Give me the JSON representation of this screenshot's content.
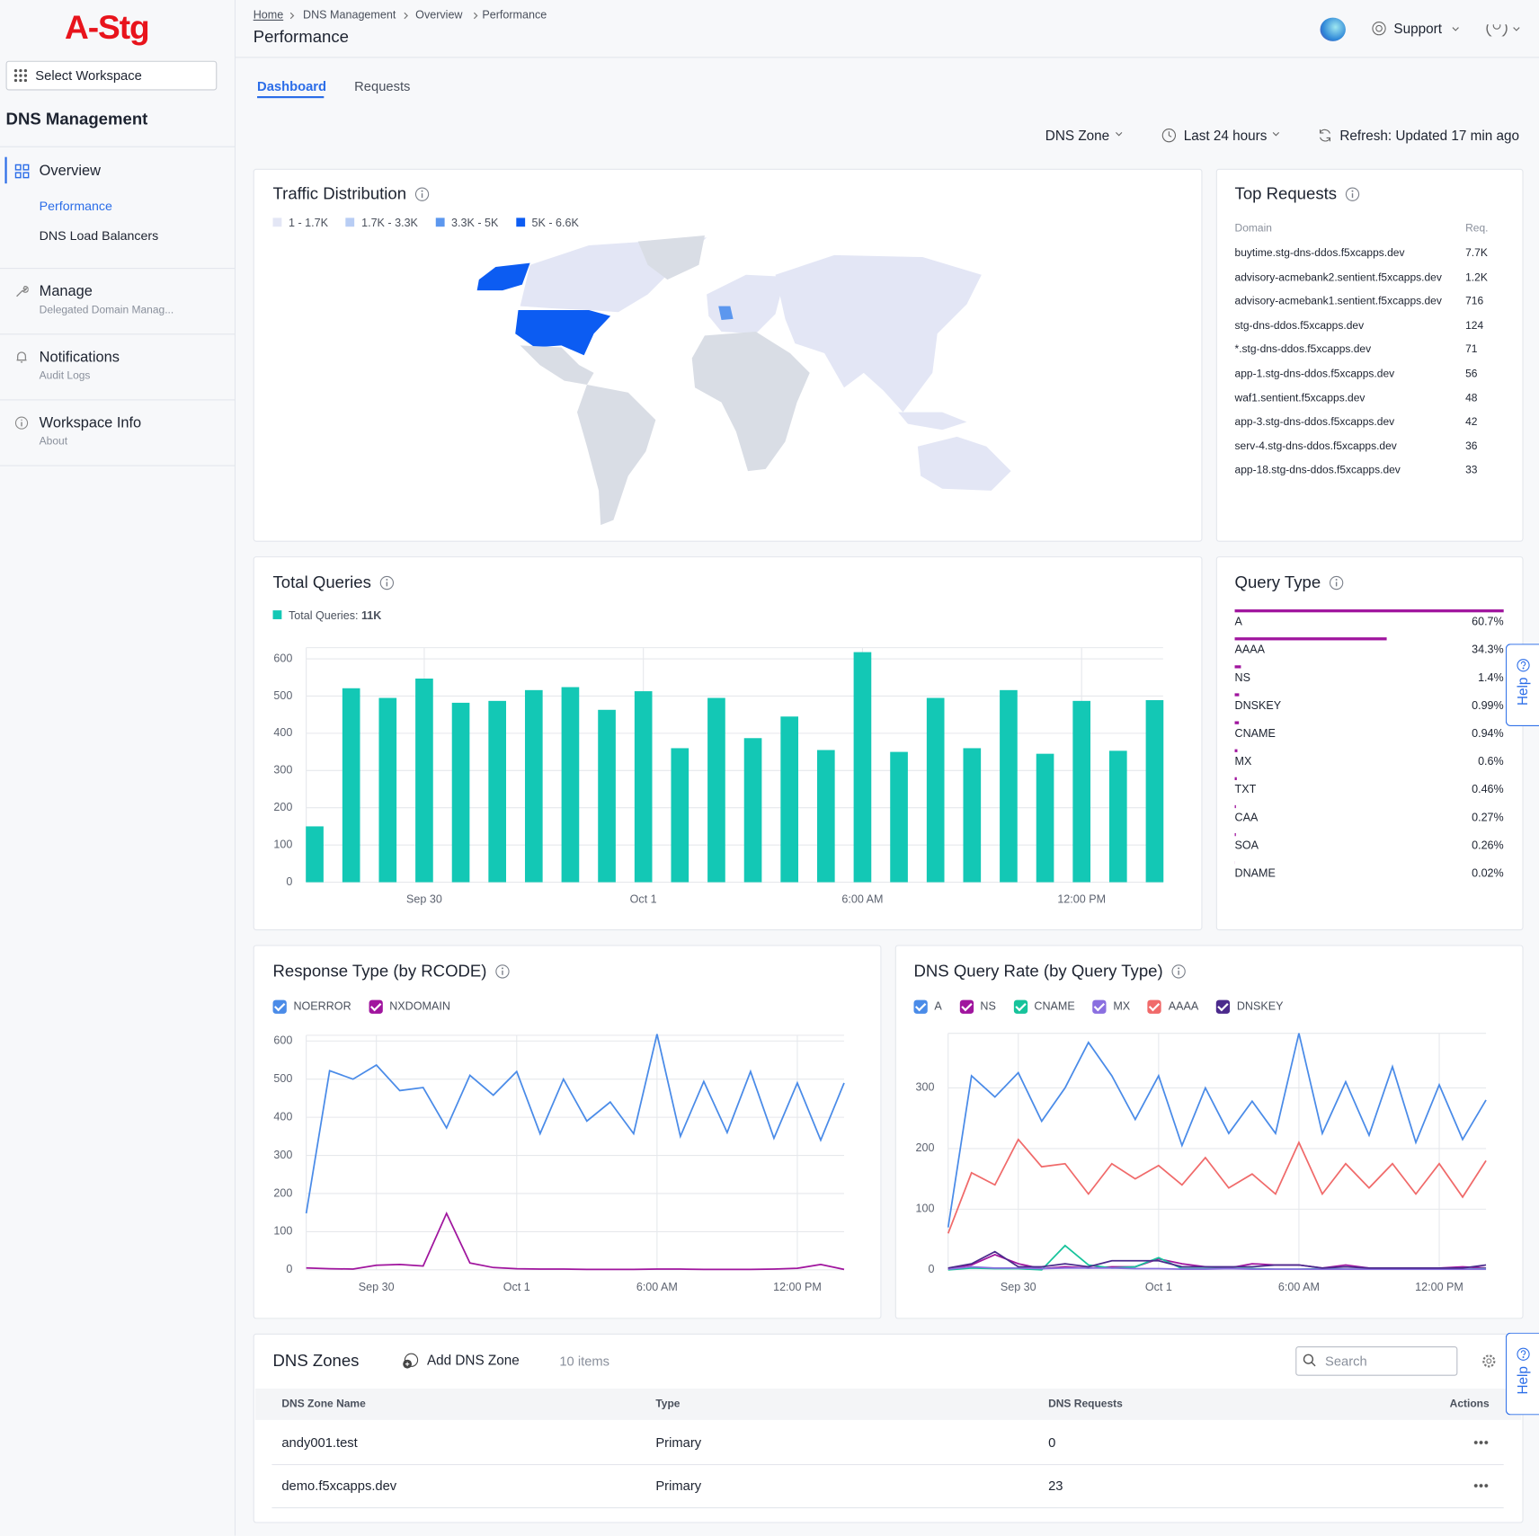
{
  "sidebar": {
    "logo": "A-Stg",
    "workspace": "Select Workspace",
    "section": "DNS Management",
    "nav": [
      {
        "label": "Overview",
        "items": [
          "Performance",
          "DNS Load Balancers"
        ]
      },
      {
        "label": "Manage",
        "sub": "Delegated Domain Manag..."
      },
      {
        "label": "Notifications",
        "sub": "Audit Logs"
      },
      {
        "label": "Workspace Info",
        "sub": "About"
      }
    ]
  },
  "header": {
    "breadcrumb": [
      "Home",
      "DNS Management",
      "Overview",
      "Performance"
    ],
    "title": "Performance",
    "support": "Support"
  },
  "tabs": [
    "Dashboard",
    "Requests"
  ],
  "filters": {
    "zone": "DNS Zone",
    "range": "Last 24 hours",
    "refresh": "Refresh: Updated 17 min ago"
  },
  "traffic_distribution": {
    "title": "Traffic Distribution",
    "legend": [
      {
        "label": "1 - 1.7K",
        "color": "#e3e6f5"
      },
      {
        "label": "1.7K - 3.3K",
        "color": "#b8cdf4"
      },
      {
        "label": "3.3K - 5K",
        "color": "#5c97ee"
      },
      {
        "label": "5K - 6.6K",
        "color": "#0c5cf2"
      }
    ]
  },
  "top_requests": {
    "title": "Top Requests",
    "columns": [
      "Domain",
      "Req."
    ],
    "rows": [
      [
        "buytime.stg-dns-ddos.f5xcapps.dev",
        "7.7K"
      ],
      [
        "advisory-acmebank2.sentient.f5xcapps.dev",
        "1.2K"
      ],
      [
        "advisory-acmebank1.sentient.f5xcapps.dev",
        "716"
      ],
      [
        "stg-dns-ddos.f5xcapps.dev",
        "124"
      ],
      [
        "*.stg-dns-ddos.f5xcapps.dev",
        "71"
      ],
      [
        "app-1.stg-dns-ddos.f5xcapps.dev",
        "56"
      ],
      [
        "waf1.sentient.f5xcapps.dev",
        "48"
      ],
      [
        "app-3.stg-dns-ddos.f5xcapps.dev",
        "42"
      ],
      [
        "serv-4.stg-dns-ddos.f5xcapps.dev",
        "36"
      ],
      [
        "app-18.stg-dns-ddos.f5xcapps.dev",
        "33"
      ]
    ]
  },
  "chart_data": [
    {
      "type": "bar",
      "title": "Total Queries",
      "legend_total": "11K",
      "categories": [
        null,
        null,
        null,
        "Sep 30",
        null,
        null,
        null,
        null,
        null,
        "Oct 1",
        null,
        null,
        null,
        null,
        null,
        "6:00 AM",
        null,
        null,
        null,
        null,
        null,
        "12:00 PM",
        null,
        null
      ],
      "series": [
        {
          "name": "Total Queries",
          "color": "#13c8b5",
          "values": [
            150,
            521,
            495,
            547,
            482,
            487,
            516,
            524,
            463,
            513,
            360,
            495,
            387,
            445,
            355,
            618,
            350,
            495,
            360,
            516,
            345,
            487,
            353,
            489
          ]
        }
      ],
      "ylim": [
        0,
        630
      ],
      "yticks": [
        0,
        100,
        200,
        300,
        400,
        500,
        600
      ],
      "grid": true
    },
    {
      "type": "hbar",
      "title": "Query Type",
      "categories": [
        "A",
        "AAAA",
        "NS",
        "DNSKEY",
        "CNAME",
        "MX",
        "TXT",
        "CAA",
        "SOA",
        "DNAME"
      ],
      "values": [
        60.7,
        34.3,
        1.4,
        0.99,
        0.94,
        0.6,
        0.46,
        0.27,
        0.26,
        0.02
      ],
      "value_labels": [
        "60.7%",
        "34.3%",
        "1.4%",
        "0.99%",
        "0.94%",
        "0.6%",
        "0.46%",
        "0.27%",
        "0.26%",
        "0.02%"
      ],
      "color": "#a0159e"
    },
    {
      "type": "line",
      "title": "Response Type (by RCODE)",
      "categories": [
        null,
        null,
        null,
        "Sep 30",
        null,
        null,
        null,
        null,
        null,
        "Oct 1",
        null,
        null,
        null,
        null,
        null,
        "6:00 AM",
        null,
        null,
        null,
        null,
        null,
        "12:00 PM",
        null,
        null
      ],
      "series": [
        {
          "name": "NOERROR",
          "color": "#4a8be8",
          "values": [
            148,
            522,
            500,
            537,
            470,
            478,
            372,
            510,
            458,
            520,
            357,
            500,
            390,
            440,
            357,
            618,
            350,
            494,
            360,
            520,
            345,
            490,
            340,
            490
          ]
        },
        {
          "name": "NXDOMAIN",
          "color": "#a0159e",
          "values": [
            5,
            3,
            2,
            12,
            14,
            10,
            148,
            18,
            6,
            3,
            2,
            2,
            1,
            1,
            1,
            2,
            2,
            1,
            1,
            1,
            2,
            4,
            14,
            1
          ]
        }
      ],
      "ylim": [
        0,
        615
      ],
      "yticks": [
        0,
        100,
        200,
        300,
        400,
        500,
        600
      ],
      "grid": true
    },
    {
      "type": "line",
      "title": "DNS Query Rate (by Query Type)",
      "categories": [
        null,
        null,
        null,
        "Sep 30",
        null,
        null,
        null,
        null,
        null,
        "Oct 1",
        null,
        null,
        null,
        null,
        null,
        "6:00 AM",
        null,
        null,
        null,
        null,
        null,
        "12:00 PM",
        null,
        null
      ],
      "series": [
        {
          "name": "A",
          "color": "#4a8be8",
          "values": [
            70,
            320,
            285,
            325,
            245,
            300,
            375,
            320,
            248,
            320,
            205,
            300,
            225,
            278,
            225,
            390,
            225,
            310,
            222,
            335,
            210,
            305,
            215,
            280
          ]
        },
        {
          "name": "NS",
          "color": "#a0159e",
          "values": [
            2,
            8,
            25,
            10,
            2,
            5,
            3,
            5,
            5,
            18,
            10,
            5,
            3,
            10,
            8,
            8,
            3,
            8,
            3,
            3,
            3,
            3,
            5,
            3
          ]
        },
        {
          "name": "CNAME",
          "color": "#17c39b",
          "values": [
            0,
            3,
            2,
            2,
            0,
            40,
            8,
            3,
            5,
            20,
            2,
            2,
            2,
            2,
            1,
            1,
            2,
            1,
            1,
            1,
            1,
            1,
            1,
            2
          ]
        },
        {
          "name": "MX",
          "color": "#8a6fe0",
          "values": [
            1,
            5,
            3,
            3,
            2,
            3,
            3,
            3,
            2,
            2,
            1,
            1,
            2,
            1,
            1,
            1,
            1,
            1,
            1,
            1,
            1,
            1,
            1,
            1
          ]
        },
        {
          "name": "AAAA",
          "color": "#f06a6a",
          "values": [
            60,
            160,
            140,
            215,
            170,
            175,
            125,
            175,
            150,
            172,
            140,
            185,
            135,
            158,
            125,
            210,
            125,
            175,
            135,
            175,
            125,
            175,
            120,
            180
          ]
        },
        {
          "name": "DNSKEY",
          "color": "#4b2a8c",
          "values": [
            3,
            10,
            30,
            5,
            5,
            10,
            5,
            15,
            15,
            15,
            5,
            5,
            5,
            5,
            8,
            8,
            3,
            5,
            3,
            3,
            3,
            3,
            3,
            8
          ]
        }
      ],
      "ylim": [
        0,
        390
      ],
      "yticks": [
        0,
        100,
        200,
        300
      ],
      "grid": true
    }
  ],
  "dns_zones": {
    "title": "DNS Zones",
    "add": "Add DNS Zone",
    "count": "10 items",
    "search": "Search",
    "columns": [
      "DNS Zone Name",
      "Type",
      "DNS Requests",
      "Actions"
    ],
    "rows": [
      [
        "andy001.test",
        "Primary",
        "0"
      ],
      [
        "demo.f5xcapps.dev",
        "Primary",
        "23"
      ]
    ]
  },
  "help": "Help"
}
